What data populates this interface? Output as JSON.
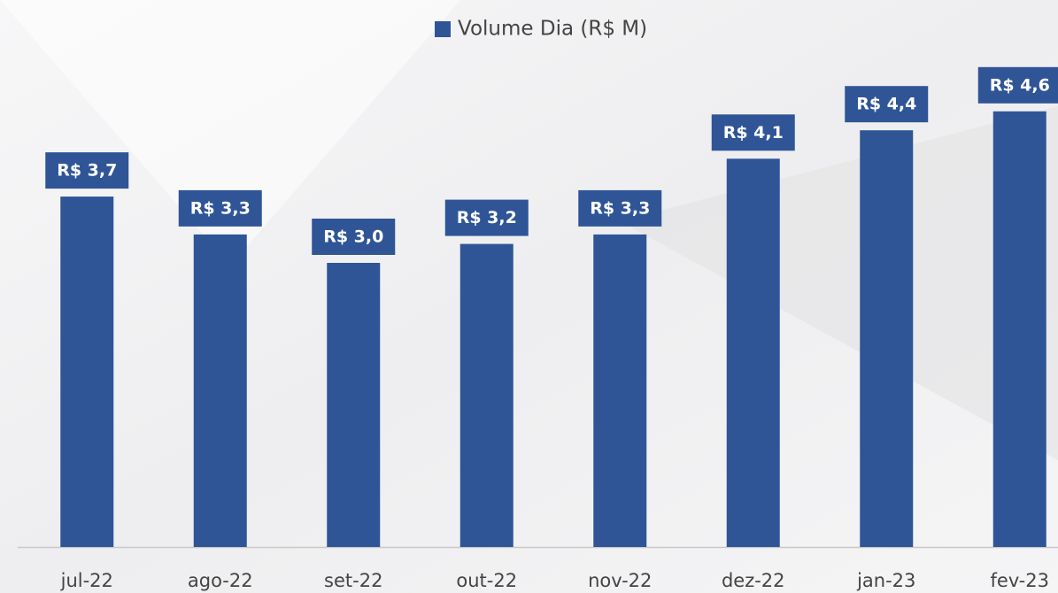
{
  "chart_data": {
    "type": "bar",
    "legend": "Volume Dia (R$ M)",
    "categories": [
      "jul-22",
      "ago-22",
      "set-22",
      "out-22",
      "nov-22",
      "dez-22",
      "jan-23",
      "fev-23"
    ],
    "values": [
      3.7,
      3.3,
      3.0,
      3.2,
      3.3,
      4.1,
      4.4,
      4.6
    ],
    "value_labels": [
      "R$ 3,7",
      "R$ 3,3",
      "R$ 3,0",
      "R$ 3,2",
      "R$ 3,3",
      "R$ 4,1",
      "R$ 4,4",
      "R$ 4,6"
    ],
    "color": "#2f5597",
    "ylim": [
      0,
      5.5
    ]
  }
}
